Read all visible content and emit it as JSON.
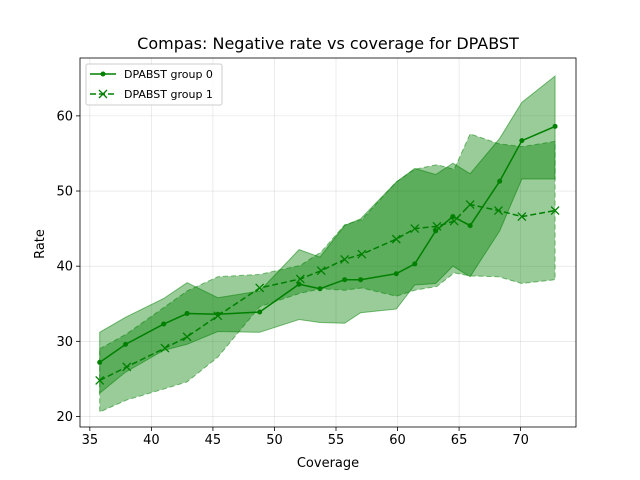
{
  "chart_data": {
    "type": "line",
    "title": "Compas: Negative rate vs coverage for DPABST",
    "xlabel": "Coverage",
    "ylabel": "Rate",
    "xlim": [
      34.2,
      74.5
    ],
    "ylim": [
      18.6,
      67.7
    ],
    "xticks": [
      35,
      40,
      45,
      50,
      55,
      60,
      65,
      70
    ],
    "yticks": [
      20,
      30,
      40,
      50,
      60
    ],
    "grid": true,
    "legend_position": "top-left",
    "series": [
      {
        "name": "DPABST group 0",
        "color": "#008000",
        "linestyle": "solid",
        "marker": "dot",
        "x": [
          35.8,
          37.9,
          41.0,
          42.9,
          45.4,
          48.8,
          52.0,
          53.7,
          55.7,
          57.0,
          59.9,
          61.4,
          63.1,
          64.5,
          65.9,
          68.3,
          70.1,
          72.8
        ],
        "y": [
          27.2,
          29.6,
          32.3,
          33.7,
          33.6,
          33.9,
          37.6,
          37.0,
          38.2,
          38.2,
          39.0,
          40.3,
          44.7,
          46.6,
          45.4,
          51.3,
          56.7,
          58.6
        ],
        "upper": [
          31.2,
          33.2,
          35.7,
          37.8,
          35.8,
          36.7,
          42.2,
          41.2,
          45.4,
          46.3,
          51.2,
          53.0,
          52.2,
          53.7,
          52.3,
          57.0,
          61.8,
          65.3
        ],
        "lower": [
          23.1,
          25.9,
          28.8,
          29.6,
          31.3,
          31.2,
          32.9,
          32.5,
          32.4,
          33.8,
          34.3,
          37.5,
          37.7,
          40.0,
          38.6,
          44.7,
          51.6,
          51.6
        ]
      },
      {
        "name": "DPABST group 1",
        "color": "#008000",
        "linestyle": "dashed",
        "marker": "x",
        "x": [
          35.8,
          38.0,
          41.1,
          42.9,
          45.4,
          48.8,
          52.1,
          53.8,
          55.7,
          57.1,
          59.9,
          61.4,
          63.2,
          64.6,
          65.9,
          68.2,
          70.1,
          72.8
        ],
        "y": [
          24.8,
          26.6,
          29.1,
          30.6,
          33.4,
          37.1,
          38.3,
          39.4,
          40.9,
          41.6,
          43.6,
          45.0,
          45.3,
          46.0,
          48.2,
          47.4,
          46.6,
          47.4
        ],
        "upper": [
          29.0,
          31.0,
          34.6,
          36.7,
          38.6,
          38.9,
          40.1,
          41.9,
          45.5,
          46.2,
          51.2,
          52.9,
          53.5,
          52.9,
          57.6,
          56.3,
          55.9,
          56.6
        ],
        "lower": [
          20.6,
          22.2,
          23.7,
          24.6,
          27.9,
          34.6,
          36.4,
          37.0,
          36.8,
          37.1,
          36.0,
          36.8,
          37.3,
          39.1,
          38.7,
          38.6,
          37.7,
          38.2
        ]
      }
    ]
  }
}
